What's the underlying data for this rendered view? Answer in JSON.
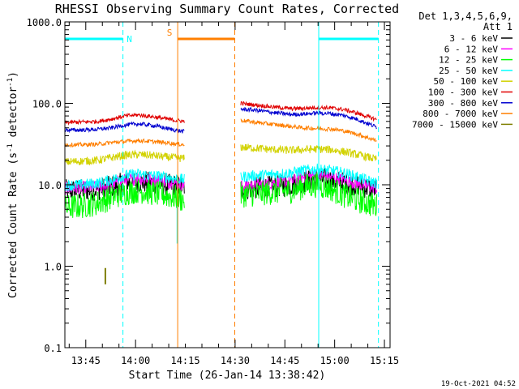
{
  "chart_data": {
    "type": "line",
    "title": "RHESSI Observing Summary Count Rates, Corrected",
    "xlabel": "Start Time (26-Jan-14 13:38:42)",
    "ylabel": "Corrected Count Rate (s^-1 detector^-1)",
    "ylabel_main": "Corrected Count Rate (s",
    "ylabel_sup1": "-1",
    "ylabel_mid": " detector",
    "ylabel_sup2": "-1",
    "ylabel_end": ")",
    "timestamp": "19-Oct-2021 04:52",
    "y_scale": "log",
    "ylim": [
      0.1,
      1000
    ],
    "xlim_minutes": [
      0,
      98
    ],
    "x_ticks": [
      {
        "label": "13:45",
        "minutes": 6.3
      },
      {
        "label": "14:00",
        "minutes": 21.3
      },
      {
        "label": "14:15",
        "minutes": 36.3
      },
      {
        "label": "14:30",
        "minutes": 51.3
      },
      {
        "label": "14:45",
        "minutes": 66.3
      },
      {
        "label": "15:00",
        "minutes": 81.3
      },
      {
        "label": "15:15",
        "minutes": 96.3
      }
    ],
    "y_ticks": [
      {
        "label": "1000.0",
        "value": 1000
      },
      {
        "label": "100.0",
        "value": 100
      },
      {
        "label": "10.0",
        "value": 10
      },
      {
        "label": "1.0",
        "value": 1
      },
      {
        "label": "0.1",
        "value": 0.1
      }
    ],
    "legend": {
      "header1": "Det 1,3,4,5,6,9,",
      "header2": "Att 1",
      "placement": "right"
    },
    "series": [
      {
        "name": "3 - 6 keV",
        "color": "#000000",
        "seg1": [
          [
            0,
            8.5
          ],
          [
            5,
            8.6
          ],
          [
            10,
            8.8
          ],
          [
            14,
            9.5
          ],
          [
            18,
            10.5
          ],
          [
            22,
            11
          ],
          [
            26,
            10.5
          ],
          [
            30,
            10
          ],
          [
            33,
            9.8
          ],
          [
            36,
            9.5
          ]
        ],
        "seg2": [
          [
            53,
            8.8
          ],
          [
            58,
            9.2
          ],
          [
            63,
            9.5
          ],
          [
            68,
            10
          ],
          [
            72,
            11
          ],
          [
            76,
            12
          ],
          [
            80,
            11.5
          ],
          [
            84,
            10.5
          ],
          [
            88,
            10
          ],
          [
            92,
            9
          ],
          [
            94,
            8.8
          ]
        ],
        "noise": 0.14
      },
      {
        "name": "6 - 12 keV",
        "color": "#ff00ff",
        "seg1": [
          [
            0,
            9
          ],
          [
            5,
            9.2
          ],
          [
            10,
            9.5
          ],
          [
            14,
            10
          ],
          [
            18,
            11.5
          ],
          [
            22,
            12
          ],
          [
            26,
            11.5
          ],
          [
            30,
            11
          ],
          [
            33,
            10.5
          ],
          [
            36,
            10.2
          ]
        ],
        "seg2": [
          [
            53,
            9.5
          ],
          [
            58,
            10
          ],
          [
            63,
            10.5
          ],
          [
            68,
            11
          ],
          [
            72,
            12.5
          ],
          [
            76,
            13
          ],
          [
            80,
            12.5
          ],
          [
            84,
            11.5
          ],
          [
            88,
            10.5
          ],
          [
            92,
            9.5
          ],
          [
            94,
            9
          ]
        ],
        "noise": 0.08
      },
      {
        "name": "12 - 25 keV",
        "color": "#00ff00",
        "seg1": [
          [
            0,
            5.2
          ],
          [
            5,
            5.5
          ],
          [
            10,
            6
          ],
          [
            14,
            7
          ],
          [
            18,
            8
          ],
          [
            22,
            8.5
          ],
          [
            26,
            8
          ],
          [
            30,
            7.5
          ],
          [
            33,
            7
          ],
          [
            36,
            6.5
          ]
        ],
        "seg2": [
          [
            53,
            7.5
          ],
          [
            58,
            7.8
          ],
          [
            63,
            8.2
          ],
          [
            68,
            8.5
          ],
          [
            72,
            9.5
          ],
          [
            76,
            10
          ],
          [
            80,
            9
          ],
          [
            84,
            7.5
          ],
          [
            88,
            6.5
          ],
          [
            92,
            5.8
          ],
          [
            94,
            5.5
          ]
        ],
        "noise": 0.16
      },
      {
        "name": "25 - 50 keV",
        "color": "#00ffff",
        "seg1": [
          [
            0,
            9.8
          ],
          [
            5,
            10
          ],
          [
            10,
            10.5
          ],
          [
            14,
            11.5
          ],
          [
            18,
            13
          ],
          [
            22,
            13.5
          ],
          [
            26,
            13
          ],
          [
            30,
            12.5
          ],
          [
            33,
            12
          ],
          [
            36,
            11.5
          ]
        ],
        "seg2": [
          [
            53,
            12.5
          ],
          [
            58,
            13
          ],
          [
            63,
            13.5
          ],
          [
            68,
            14
          ],
          [
            72,
            15
          ],
          [
            76,
            15.5
          ],
          [
            80,
            15
          ],
          [
            84,
            14
          ],
          [
            88,
            12.5
          ],
          [
            92,
            11
          ],
          [
            94,
            10.5
          ]
        ],
        "noise": 0.07
      },
      {
        "name": "50 - 100 keV",
        "color": "#d2d200",
        "seg1": [
          [
            0,
            19
          ],
          [
            5,
            19.5
          ],
          [
            10,
            20
          ],
          [
            14,
            21.5
          ],
          [
            18,
            23
          ],
          [
            22,
            23.5
          ],
          [
            26,
            23
          ],
          [
            30,
            22
          ],
          [
            33,
            21.5
          ],
          [
            36,
            21
          ]
        ],
        "seg2": [
          [
            53,
            29
          ],
          [
            58,
            28
          ],
          [
            63,
            27
          ],
          [
            68,
            26.5
          ],
          [
            72,
            27
          ],
          [
            76,
            27.5
          ],
          [
            80,
            27
          ],
          [
            84,
            25.5
          ],
          [
            88,
            23.5
          ],
          [
            92,
            21.5
          ],
          [
            94,
            20.5
          ]
        ],
        "noise": 0.05
      },
      {
        "name": "100 - 300 keV",
        "color": "#e00000",
        "seg1": [
          [
            0,
            58
          ],
          [
            5,
            59
          ],
          [
            10,
            60
          ],
          [
            14,
            64
          ],
          [
            18,
            70
          ],
          [
            22,
            72
          ],
          [
            26,
            69
          ],
          [
            30,
            65
          ],
          [
            33,
            62
          ],
          [
            36,
            60
          ]
        ],
        "seg2": [
          [
            53,
            100
          ],
          [
            58,
            95
          ],
          [
            63,
            90
          ],
          [
            68,
            86
          ],
          [
            72,
            87
          ],
          [
            76,
            89
          ],
          [
            80,
            88
          ],
          [
            84,
            84
          ],
          [
            88,
            76
          ],
          [
            92,
            67
          ],
          [
            94,
            63
          ]
        ],
        "noise": 0.025
      },
      {
        "name": "300 - 800 keV",
        "color": "#0000d0",
        "seg1": [
          [
            0,
            47
          ],
          [
            5,
            47
          ],
          [
            10,
            48
          ],
          [
            14,
            50
          ],
          [
            18,
            54
          ],
          [
            22,
            56
          ],
          [
            26,
            54
          ],
          [
            30,
            50
          ],
          [
            33,
            47
          ],
          [
            36,
            45
          ]
        ],
        "seg2": [
          [
            53,
            85
          ],
          [
            58,
            82
          ],
          [
            63,
            77
          ],
          [
            68,
            73
          ],
          [
            72,
            74
          ],
          [
            76,
            76
          ],
          [
            80,
            75
          ],
          [
            84,
            71
          ],
          [
            88,
            64
          ],
          [
            92,
            55
          ],
          [
            94,
            51
          ]
        ],
        "noise": 0.025
      },
      {
        "name": "800 - 7000 keV",
        "color": "#ff7f00",
        "seg1": [
          [
            0,
            31
          ],
          [
            5,
            31
          ],
          [
            10,
            31.5
          ],
          [
            14,
            33
          ],
          [
            18,
            34
          ],
          [
            22,
            35
          ],
          [
            26,
            34
          ],
          [
            30,
            33
          ],
          [
            33,
            32
          ],
          [
            36,
            31
          ]
        ],
        "seg2": [
          [
            53,
            62
          ],
          [
            58,
            58
          ],
          [
            63,
            55
          ],
          [
            68,
            52
          ],
          [
            72,
            50
          ],
          [
            76,
            49
          ],
          [
            80,
            48.5
          ],
          [
            84,
            46
          ],
          [
            88,
            42
          ],
          [
            92,
            37
          ],
          [
            94,
            35
          ]
        ],
        "noise": 0.025
      },
      {
        "name": "7000 - 15000 keV",
        "color": "#7f7f00",
        "seg1": [],
        "seg2": [],
        "noise": 0
      }
    ],
    "orbit_markers": [
      {
        "label": "N",
        "color": "#00ffff",
        "lines": [
          0,
          17.5,
          76.5,
          94.5
        ],
        "bars": [
          [
            0,
            17.5
          ],
          [
            76.5,
            94.5
          ]
        ]
      },
      {
        "label": "S",
        "color": "#ff7f00",
        "lines": [
          34,
          51.2
        ],
        "bars": [
          [
            34,
            51.2
          ]
        ]
      }
    ]
  }
}
